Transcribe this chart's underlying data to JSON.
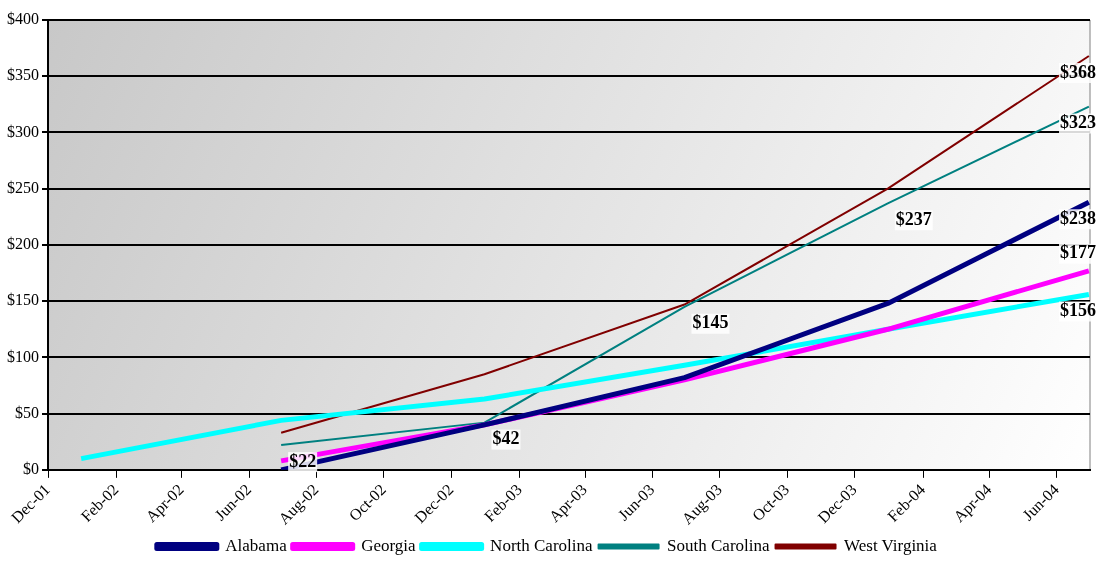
{
  "chart_data": {
    "type": "line",
    "x": [
      "2002-06-30",
      "2002-12-31",
      "2003-06-30",
      "2003-12-31",
      "2004-06-30"
    ],
    "series": [
      {
        "name": "Alabama",
        "color": "#000080",
        "values": [
          0,
          40,
          82,
          148,
          238
        ],
        "value_labels": [
          null,
          null,
          null,
          null,
          "$238"
        ]
      },
      {
        "name": "Georgia",
        "color": "#ff00ff",
        "values": [
          8,
          40,
          80,
          125,
          177
        ],
        "value_labels": [
          null,
          null,
          null,
          null,
          "$177"
        ]
      },
      {
        "name": "North Carolina",
        "color": "#00ffff",
        "x": [
          "2001-12-31",
          "2002-06-30",
          "2002-12-31",
          "2003-06-30",
          "2003-12-31",
          "2004-06-30"
        ],
        "values": [
          10,
          44,
          63,
          93,
          125,
          156
        ],
        "value_labels": [
          null,
          null,
          null,
          null,
          null,
          "$156"
        ]
      },
      {
        "name": "South Carolina",
        "color": "#008080",
        "values": [
          22,
          42,
          145,
          237,
          323
        ],
        "value_labels": [
          "$22",
          "$42",
          "$145",
          "$237",
          "$323"
        ]
      },
      {
        "name": "West Virginia",
        "color": "#800000",
        "values": [
          33,
          85,
          147,
          250,
          368
        ],
        "value_labels": [
          null,
          null,
          null,
          null,
          "$368"
        ]
      }
    ],
    "xlim": [
      "2001-12-01",
      "2004-07-01"
    ],
    "xticks": [
      {
        "value": "2001-12",
        "label": "Dec-01"
      },
      {
        "value": "2002-02",
        "label": "Feb-02"
      },
      {
        "value": "2002-04",
        "label": "Apr-02"
      },
      {
        "value": "2002-06",
        "label": "Jun-02"
      },
      {
        "value": "2002-08",
        "label": "Aug-02"
      },
      {
        "value": "2002-10",
        "label": "Oct-02"
      },
      {
        "value": "2002-12",
        "label": "Dec-02"
      },
      {
        "value": "2003-02",
        "label": "Feb-03"
      },
      {
        "value": "2003-04",
        "label": "Apr-03"
      },
      {
        "value": "2003-06",
        "label": "Jun-03"
      },
      {
        "value": "2003-08",
        "label": "Aug-03"
      },
      {
        "value": "2003-10",
        "label": "Oct-03"
      },
      {
        "value": "2003-12",
        "label": "Dec-03"
      },
      {
        "value": "2004-02",
        "label": "Feb-04"
      },
      {
        "value": "2004-04",
        "label": "Apr-04"
      },
      {
        "value": "2004-06",
        "label": "Jun-04"
      }
    ],
    "ylim": [
      0,
      400
    ],
    "yticks": [
      {
        "value": 0,
        "label": "$0"
      },
      {
        "value": 50,
        "label": "$50"
      },
      {
        "value": 100,
        "label": "$100"
      },
      {
        "value": 150,
        "label": "$150"
      },
      {
        "value": 200,
        "label": "$200"
      },
      {
        "value": 250,
        "label": "$250"
      },
      {
        "value": 300,
        "label": "$300"
      },
      {
        "value": 350,
        "label": "$350"
      },
      {
        "value": 400,
        "label": "$400"
      }
    ],
    "grid": "y",
    "legend": "bottom",
    "marker": "none",
    "line_style": "solid"
  }
}
